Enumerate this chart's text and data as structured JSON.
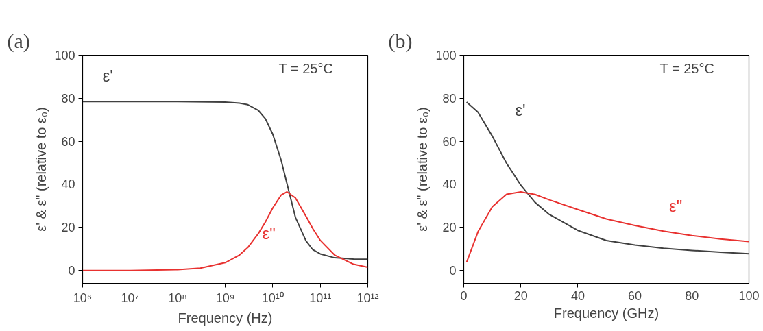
{
  "chart_data": [
    {
      "type": "line",
      "title": "(a)",
      "xlabel": "Frequency (Hz)",
      "ylabel": "ε' & ε\" (relative to ε₀)",
      "log": "x",
      "grid": false,
      "xlim": [
        1000000.0,
        1000000000000.0
      ],
      "ylim": [
        -6,
        100
      ],
      "xticks": [
        {
          "value": 1000000.0,
          "label": "10⁶"
        },
        {
          "value": 10000000.0,
          "label": "10⁷"
        },
        {
          "value": 100000000.0,
          "label": "10⁸"
        },
        {
          "value": 1000000000.0,
          "label": "10⁹"
        },
        {
          "value": 10000000000.0,
          "label": "10¹⁰"
        },
        {
          "value": 100000000000.0,
          "label": "10¹¹"
        },
        {
          "value": 1000000000000.0,
          "label": "10¹²"
        }
      ],
      "yticks": [
        0,
        20,
        40,
        60,
        80,
        100
      ],
      "annotations": [
        "T = 25°C"
      ],
      "series": [
        {
          "name": "ε'",
          "color": "#404040",
          "x": [
            1000000.0,
            10000000.0,
            100000000.0,
            1000000000.0,
            2000000000.0,
            3000000000.0,
            5000000000.0,
            7000000000.0,
            10000000000.0,
            15000000000.0,
            20000000000.0,
            30000000000.0,
            50000000000.0,
            70000000000.0,
            100000000000.0,
            200000000000.0,
            500000000000.0,
            1000000000000.0
          ],
          "values": [
            78.4,
            78.4,
            78.4,
            78.2,
            77.7,
            77.0,
            74.3,
            70.5,
            63.3,
            51.3,
            40.2,
            24.7,
            13.8,
            9.6,
            7.7,
            5.9,
            5.3,
            5.2
          ]
        },
        {
          "name": "ε\"",
          "color": "#e8312f",
          "x": [
            1000000.0,
            10000000.0,
            100000000.0,
            300000000.0,
            1000000000.0,
            2000000000.0,
            3000000000.0,
            5000000000.0,
            7000000000.0,
            10000000000.0,
            15000000000.0,
            20000000000.0,
            30000000000.0,
            50000000000.0,
            70000000000.0,
            100000000000.0,
            200000000000.0,
            500000000000.0,
            1000000000000.0
          ],
          "values": [
            0,
            0,
            0.4,
            1.1,
            3.6,
            7.2,
            10.7,
            17.2,
            22.5,
            29.0,
            35.0,
            36.5,
            33.7,
            25.2,
            19.4,
            14.0,
            7.2,
            2.9,
            1.5
          ]
        }
      ]
    },
    {
      "type": "line",
      "title": "(b)",
      "xlabel": "Frequency (GHz)",
      "ylabel": "ε' & ε\" (relative to ε₀)",
      "grid": false,
      "xlim": [
        0,
        100
      ],
      "ylim": [
        -6,
        100
      ],
      "xticks": [
        0,
        20,
        40,
        60,
        80,
        100
      ],
      "yticks": [
        0,
        20,
        40,
        60,
        80,
        100
      ],
      "annotations": [
        "T = 25°C"
      ],
      "series": [
        {
          "name": "ε'",
          "color": "#404040",
          "x": [
            1,
            5,
            10,
            15,
            20,
            25,
            30,
            40,
            50,
            60,
            70,
            80,
            90,
            100
          ],
          "values": [
            78.2,
            73.5,
            62.4,
            49.8,
            39.6,
            31.6,
            26.0,
            18.6,
            13.9,
            11.8,
            10.3,
            9.3,
            8.5,
            7.8
          ]
        },
        {
          "name": "ε\"",
          "color": "#e8312f",
          "x": [
            1,
            5,
            10,
            15,
            20,
            25,
            30,
            40,
            50,
            60,
            70,
            80,
            90,
            100
          ],
          "values": [
            3.8,
            18.0,
            29.6,
            35.4,
            36.5,
            35.3,
            32.8,
            28.3,
            23.9,
            20.9,
            18.3,
            16.2,
            14.6,
            13.4
          ]
        }
      ]
    }
  ]
}
